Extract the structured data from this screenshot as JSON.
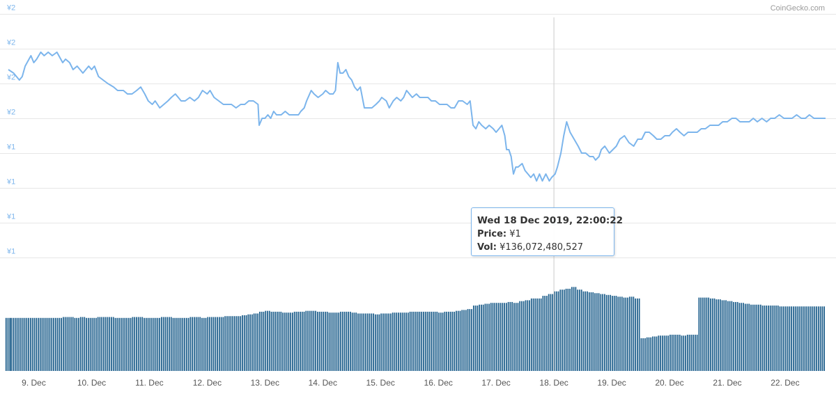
{
  "credit": "CoinGecko.com",
  "chart_data": {
    "type": "line",
    "currency_symbol": "¥",
    "price_axis": {
      "tick_labels": [
        "¥2",
        "¥2",
        "¥2",
        "¥2",
        "¥1",
        "¥1",
        "¥1",
        "¥1"
      ],
      "ylim": [
        1.24,
        1.96
      ],
      "ticks": [
        1.96,
        1.86,
        1.76,
        1.66,
        1.56,
        1.46,
        1.36,
        1.26
      ]
    },
    "x_axis": {
      "tick_labels": [
        "9. Dec",
        "10. Dec",
        "11. Dec",
        "12. Dec",
        "13. Dec",
        "14. Dec",
        "15. Dec",
        "16. Dec",
        "17. Dec",
        "18. Dec",
        "19. Dec",
        "20. Dec",
        "21. Dec",
        "22. Dec"
      ],
      "ticks": [
        1,
        2,
        3,
        4,
        5,
        6,
        7,
        8,
        9,
        10,
        11,
        12,
        13,
        14
      ],
      "xlim": [
        0.56,
        14.7
      ]
    },
    "price_series": [
      [
        0.56,
        1.8
      ],
      [
        0.65,
        1.79
      ],
      [
        0.75,
        1.77
      ],
      [
        0.8,
        1.78
      ],
      [
        0.85,
        1.81
      ],
      [
        0.95,
        1.84
      ],
      [
        1.0,
        1.82
      ],
      [
        1.05,
        1.83
      ],
      [
        1.12,
        1.85
      ],
      [
        1.18,
        1.84
      ],
      [
        1.25,
        1.85
      ],
      [
        1.32,
        1.84
      ],
      [
        1.4,
        1.85
      ],
      [
        1.5,
        1.82
      ],
      [
        1.55,
        1.83
      ],
      [
        1.62,
        1.82
      ],
      [
        1.68,
        1.8
      ],
      [
        1.75,
        1.81
      ],
      [
        1.85,
        1.79
      ],
      [
        1.95,
        1.81
      ],
      [
        2.0,
        1.8
      ],
      [
        2.05,
        1.81
      ],
      [
        2.12,
        1.78
      ],
      [
        2.2,
        1.77
      ],
      [
        2.28,
        1.76
      ],
      [
        2.38,
        1.75
      ],
      [
        2.45,
        1.74
      ],
      [
        2.55,
        1.74
      ],
      [
        2.62,
        1.73
      ],
      [
        2.7,
        1.73
      ],
      [
        2.78,
        1.74
      ],
      [
        2.85,
        1.75
      ],
      [
        2.92,
        1.73
      ],
      [
        2.98,
        1.71
      ],
      [
        3.05,
        1.7
      ],
      [
        3.1,
        1.71
      ],
      [
        3.18,
        1.69
      ],
      [
        3.25,
        1.7
      ],
      [
        3.32,
        1.71
      ],
      [
        3.38,
        1.72
      ],
      [
        3.45,
        1.73
      ],
      [
        3.5,
        1.72
      ],
      [
        3.55,
        1.71
      ],
      [
        3.62,
        1.71
      ],
      [
        3.7,
        1.72
      ],
      [
        3.78,
        1.71
      ],
      [
        3.85,
        1.72
      ],
      [
        3.92,
        1.74
      ],
      [
        4.0,
        1.73
      ],
      [
        4.05,
        1.74
      ],
      [
        4.12,
        1.72
      ],
      [
        4.2,
        1.71
      ],
      [
        4.28,
        1.7
      ],
      [
        4.35,
        1.7
      ],
      [
        4.42,
        1.7
      ],
      [
        4.5,
        1.69
      ],
      [
        4.58,
        1.7
      ],
      [
        4.65,
        1.7
      ],
      [
        4.72,
        1.71
      ],
      [
        4.8,
        1.71
      ],
      [
        4.88,
        1.7
      ],
      [
        4.9,
        1.64
      ],
      [
        4.95,
        1.66
      ],
      [
        5.0,
        1.66
      ],
      [
        5.05,
        1.67
      ],
      [
        5.1,
        1.66
      ],
      [
        5.15,
        1.68
      ],
      [
        5.2,
        1.67
      ],
      [
        5.28,
        1.67
      ],
      [
        5.35,
        1.68
      ],
      [
        5.42,
        1.67
      ],
      [
        5.5,
        1.67
      ],
      [
        5.58,
        1.67
      ],
      [
        5.62,
        1.68
      ],
      [
        5.68,
        1.69
      ],
      [
        5.72,
        1.71
      ],
      [
        5.8,
        1.74
      ],
      [
        5.85,
        1.73
      ],
      [
        5.92,
        1.72
      ],
      [
        6.0,
        1.73
      ],
      [
        6.05,
        1.74
      ],
      [
        6.12,
        1.73
      ],
      [
        6.18,
        1.73
      ],
      [
        6.22,
        1.74
      ],
      [
        6.26,
        1.82
      ],
      [
        6.3,
        1.79
      ],
      [
        6.35,
        1.79
      ],
      [
        6.4,
        1.8
      ],
      [
        6.45,
        1.78
      ],
      [
        6.5,
        1.77
      ],
      [
        6.55,
        1.75
      ],
      [
        6.6,
        1.74
      ],
      [
        6.65,
        1.75
      ],
      [
        6.72,
        1.69
      ],
      [
        6.8,
        1.69
      ],
      [
        6.85,
        1.69
      ],
      [
        6.92,
        1.7
      ],
      [
        6.98,
        1.71
      ],
      [
        7.02,
        1.72
      ],
      [
        7.1,
        1.71
      ],
      [
        7.15,
        1.69
      ],
      [
        7.22,
        1.71
      ],
      [
        7.28,
        1.72
      ],
      [
        7.35,
        1.71
      ],
      [
        7.4,
        1.72
      ],
      [
        7.45,
        1.74
      ],
      [
        7.5,
        1.73
      ],
      [
        7.55,
        1.72
      ],
      [
        7.62,
        1.73
      ],
      [
        7.68,
        1.72
      ],
      [
        7.75,
        1.72
      ],
      [
        7.82,
        1.72
      ],
      [
        7.88,
        1.71
      ],
      [
        7.95,
        1.71
      ],
      [
        8.02,
        1.7
      ],
      [
        8.08,
        1.7
      ],
      [
        8.15,
        1.7
      ],
      [
        8.22,
        1.69
      ],
      [
        8.28,
        1.69
      ],
      [
        8.35,
        1.71
      ],
      [
        8.42,
        1.71
      ],
      [
        8.5,
        1.7
      ],
      [
        8.55,
        1.71
      ],
      [
        8.6,
        1.64
      ],
      [
        8.65,
        1.63
      ],
      [
        8.7,
        1.65
      ],
      [
        8.75,
        1.64
      ],
      [
        8.82,
        1.63
      ],
      [
        8.88,
        1.64
      ],
      [
        8.95,
        1.63
      ],
      [
        9.0,
        1.62
      ],
      [
        9.05,
        1.63
      ],
      [
        9.1,
        1.64
      ],
      [
        9.15,
        1.61
      ],
      [
        9.18,
        1.57
      ],
      [
        9.22,
        1.57
      ],
      [
        9.26,
        1.55
      ],
      [
        9.3,
        1.5
      ],
      [
        9.34,
        1.52
      ],
      [
        9.38,
        1.52
      ],
      [
        9.45,
        1.53
      ],
      [
        9.5,
        1.51
      ],
      [
        9.55,
        1.5
      ],
      [
        9.6,
        1.49
      ],
      [
        9.65,
        1.5
      ],
      [
        9.7,
        1.48
      ],
      [
        9.75,
        1.5
      ],
      [
        9.8,
        1.48
      ],
      [
        9.86,
        1.5
      ],
      [
        9.92,
        1.48
      ],
      [
        9.96,
        1.49
      ],
      [
        10.02,
        1.5
      ],
      [
        10.06,
        1.52
      ],
      [
        10.12,
        1.56
      ],
      [
        10.17,
        1.61
      ],
      [
        10.22,
        1.65
      ],
      [
        10.28,
        1.62
      ],
      [
        10.35,
        1.6
      ],
      [
        10.42,
        1.58
      ],
      [
        10.48,
        1.56
      ],
      [
        10.55,
        1.56
      ],
      [
        10.62,
        1.55
      ],
      [
        10.68,
        1.55
      ],
      [
        10.72,
        1.54
      ],
      [
        10.78,
        1.55
      ],
      [
        10.82,
        1.57
      ],
      [
        10.88,
        1.58
      ],
      [
        10.92,
        1.57
      ],
      [
        10.96,
        1.56
      ],
      [
        11.02,
        1.57
      ],
      [
        11.08,
        1.58
      ],
      [
        11.14,
        1.6
      ],
      [
        11.22,
        1.61
      ],
      [
        11.3,
        1.59
      ],
      [
        11.38,
        1.58
      ],
      [
        11.45,
        1.6
      ],
      [
        11.52,
        1.6
      ],
      [
        11.58,
        1.62
      ],
      [
        11.65,
        1.62
      ],
      [
        11.72,
        1.61
      ],
      [
        11.78,
        1.6
      ],
      [
        11.85,
        1.6
      ],
      [
        11.92,
        1.61
      ],
      [
        12.0,
        1.61
      ],
      [
        12.05,
        1.62
      ],
      [
        12.12,
        1.63
      ],
      [
        12.18,
        1.62
      ],
      [
        12.25,
        1.61
      ],
      [
        12.32,
        1.62
      ],
      [
        12.4,
        1.62
      ],
      [
        12.48,
        1.62
      ],
      [
        12.55,
        1.63
      ],
      [
        12.62,
        1.63
      ],
      [
        12.7,
        1.64
      ],
      [
        12.78,
        1.64
      ],
      [
        12.85,
        1.64
      ],
      [
        12.92,
        1.65
      ],
      [
        13.0,
        1.65
      ],
      [
        13.08,
        1.66
      ],
      [
        13.15,
        1.66
      ],
      [
        13.22,
        1.65
      ],
      [
        13.3,
        1.65
      ],
      [
        13.38,
        1.65
      ],
      [
        13.45,
        1.66
      ],
      [
        13.52,
        1.65
      ],
      [
        13.6,
        1.66
      ],
      [
        13.68,
        1.65
      ],
      [
        13.75,
        1.66
      ],
      [
        13.82,
        1.66
      ],
      [
        13.9,
        1.67
      ],
      [
        13.98,
        1.66
      ],
      [
        14.05,
        1.66
      ],
      [
        14.12,
        1.66
      ],
      [
        14.2,
        1.67
      ],
      [
        14.28,
        1.66
      ],
      [
        14.35,
        1.66
      ],
      [
        14.42,
        1.67
      ],
      [
        14.5,
        1.66
      ],
      [
        14.58,
        1.66
      ],
      [
        14.65,
        1.66
      ],
      [
        14.7,
        1.66
      ]
    ],
    "hover": {
      "x": 10.0,
      "price": 1.36
    },
    "volume_bars": [
      [
        0.56,
        60
      ],
      [
        0.65,
        60
      ],
      [
        0.75,
        60
      ],
      [
        0.85,
        60
      ],
      [
        0.95,
        60
      ],
      [
        1.05,
        60
      ],
      [
        1.15,
        60
      ],
      [
        1.25,
        60
      ],
      [
        1.35,
        60
      ],
      [
        1.45,
        60
      ],
      [
        1.55,
        61
      ],
      [
        1.65,
        61
      ],
      [
        1.75,
        60
      ],
      [
        1.85,
        61
      ],
      [
        1.95,
        60
      ],
      [
        2.05,
        60
      ],
      [
        2.15,
        61
      ],
      [
        2.25,
        61
      ],
      [
        2.35,
        61
      ],
      [
        2.45,
        60
      ],
      [
        2.55,
        60
      ],
      [
        2.65,
        60
      ],
      [
        2.75,
        61
      ],
      [
        2.85,
        61
      ],
      [
        2.95,
        60
      ],
      [
        3.05,
        60
      ],
      [
        3.15,
        60
      ],
      [
        3.25,
        61
      ],
      [
        3.35,
        61
      ],
      [
        3.45,
        60
      ],
      [
        3.55,
        60
      ],
      [
        3.65,
        60
      ],
      [
        3.75,
        61
      ],
      [
        3.85,
        61
      ],
      [
        3.95,
        60
      ],
      [
        4.05,
        61
      ],
      [
        4.15,
        61
      ],
      [
        4.25,
        61
      ],
      [
        4.35,
        62
      ],
      [
        4.45,
        62
      ],
      [
        4.55,
        62
      ],
      [
        4.65,
        63
      ],
      [
        4.75,
        64
      ],
      [
        4.85,
        65
      ],
      [
        4.95,
        67
      ],
      [
        5.05,
        68
      ],
      [
        5.15,
        67
      ],
      [
        5.25,
        67
      ],
      [
        5.35,
        66
      ],
      [
        5.45,
        66
      ],
      [
        5.55,
        67
      ],
      [
        5.65,
        67
      ],
      [
        5.75,
        68
      ],
      [
        5.85,
        68
      ],
      [
        5.95,
        67
      ],
      [
        6.05,
        67
      ],
      [
        6.15,
        66
      ],
      [
        6.25,
        66
      ],
      [
        6.35,
        67
      ],
      [
        6.45,
        67
      ],
      [
        6.55,
        66
      ],
      [
        6.65,
        65
      ],
      [
        6.75,
        65
      ],
      [
        6.85,
        65
      ],
      [
        6.95,
        64
      ],
      [
        7.05,
        65
      ],
      [
        7.15,
        65
      ],
      [
        7.25,
        66
      ],
      [
        7.35,
        66
      ],
      [
        7.45,
        66
      ],
      [
        7.55,
        67
      ],
      [
        7.65,
        67
      ],
      [
        7.75,
        67
      ],
      [
        7.85,
        67
      ],
      [
        7.95,
        67
      ],
      [
        8.05,
        66
      ],
      [
        8.15,
        67
      ],
      [
        8.25,
        67
      ],
      [
        8.35,
        68
      ],
      [
        8.45,
        69
      ],
      [
        8.55,
        70
      ],
      [
        8.65,
        74
      ],
      [
        8.75,
        75
      ],
      [
        8.85,
        76
      ],
      [
        8.95,
        77
      ],
      [
        9.05,
        77
      ],
      [
        9.15,
        77
      ],
      [
        9.25,
        78
      ],
      [
        9.35,
        77
      ],
      [
        9.45,
        79
      ],
      [
        9.55,
        80
      ],
      [
        9.65,
        82
      ],
      [
        9.75,
        82
      ],
      [
        9.85,
        85
      ],
      [
        9.95,
        87
      ],
      [
        10.05,
        90
      ],
      [
        10.15,
        92
      ],
      [
        10.25,
        93
      ],
      [
        10.35,
        95
      ],
      [
        10.45,
        92
      ],
      [
        10.55,
        90
      ],
      [
        10.65,
        89
      ],
      [
        10.75,
        88
      ],
      [
        10.85,
        87
      ],
      [
        10.95,
        86
      ],
      [
        11.05,
        85
      ],
      [
        11.15,
        84
      ],
      [
        11.25,
        83
      ],
      [
        11.35,
        84
      ],
      [
        11.45,
        82
      ],
      [
        11.55,
        37
      ],
      [
        11.65,
        38
      ],
      [
        11.75,
        39
      ],
      [
        11.85,
        40
      ],
      [
        11.95,
        40
      ],
      [
        12.05,
        41
      ],
      [
        12.15,
        41
      ],
      [
        12.25,
        40
      ],
      [
        12.35,
        41
      ],
      [
        12.45,
        41
      ],
      [
        12.55,
        83
      ],
      [
        12.65,
        83
      ],
      [
        12.75,
        82
      ],
      [
        12.85,
        81
      ],
      [
        12.95,
        80
      ],
      [
        13.05,
        79
      ],
      [
        13.15,
        78
      ],
      [
        13.25,
        77
      ],
      [
        13.35,
        76
      ],
      [
        13.45,
        75
      ],
      [
        13.55,
        75
      ],
      [
        13.65,
        74
      ],
      [
        13.75,
        74
      ],
      [
        13.85,
        74
      ],
      [
        13.95,
        73
      ],
      [
        14.05,
        73
      ],
      [
        14.15,
        73
      ],
      [
        14.25,
        73
      ],
      [
        14.35,
        73
      ],
      [
        14.45,
        73
      ],
      [
        14.55,
        73
      ],
      [
        14.65,
        73
      ]
    ]
  },
  "tooltip": {
    "date": "Wed 18 Dec 2019, 22:00:22",
    "price_label": "Price:",
    "price_value": "¥1",
    "vol_label": "Vol:",
    "vol_value": "¥136,072,480,527"
  },
  "colors": {
    "line": "#7cb5ec",
    "axis_label": "#7cb5ec",
    "bars": "#1e5f8c",
    "grid": "#e6e6e6",
    "crosshair": "#cccccc",
    "marker": "#1f5f8b",
    "x_label": "#555555"
  }
}
